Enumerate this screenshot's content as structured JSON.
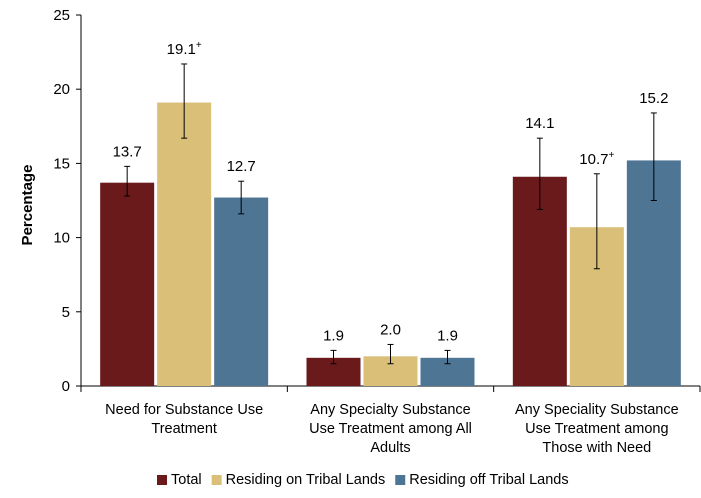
{
  "chart_data": {
    "type": "bar",
    "title": "",
    "xlabel": "",
    "ylabel": "Percentage",
    "ylim": [
      0,
      25
    ],
    "yticks": [
      0,
      5,
      10,
      15,
      20,
      25
    ],
    "grid": false,
    "legend_position": "bottom",
    "categories": [
      [
        "Need for Substance Use",
        "Treatment"
      ],
      [
        "Any Specialty Substance",
        "Use Treatment among All",
        "Adults"
      ],
      [
        "Any Speciality Substance",
        "Use Treatment among",
        "Those with Need"
      ]
    ],
    "series": [
      {
        "name": "Total",
        "color": "#6b1a1c",
        "values": [
          13.7,
          1.9,
          14.1
        ],
        "labels": [
          "13.7",
          "1.9",
          "14.1"
        ],
        "superscripts": [
          "",
          "",
          ""
        ],
        "error_low": [
          12.8,
          1.5,
          11.9
        ],
        "error_high": [
          14.8,
          2.4,
          16.7
        ]
      },
      {
        "name": "Residing on Tribal Lands",
        "color": "#d9bf78",
        "values": [
          19.1,
          2.0,
          10.7
        ],
        "labels": [
          "19.1",
          "2.0",
          "10.7"
        ],
        "superscripts": [
          "+",
          "",
          "+"
        ],
        "error_low": [
          16.7,
          1.5,
          7.9
        ],
        "error_high": [
          21.7,
          2.8,
          14.3
        ]
      },
      {
        "name": "Residing off Tribal Lands",
        "color": "#4e7594",
        "values": [
          12.7,
          1.9,
          15.2
        ],
        "labels": [
          "12.7",
          "1.9",
          "15.2"
        ],
        "superscripts": [
          "",
          "",
          ""
        ],
        "error_low": [
          11.6,
          1.5,
          12.5
        ],
        "error_high": [
          13.8,
          2.4,
          18.4
        ]
      }
    ]
  }
}
